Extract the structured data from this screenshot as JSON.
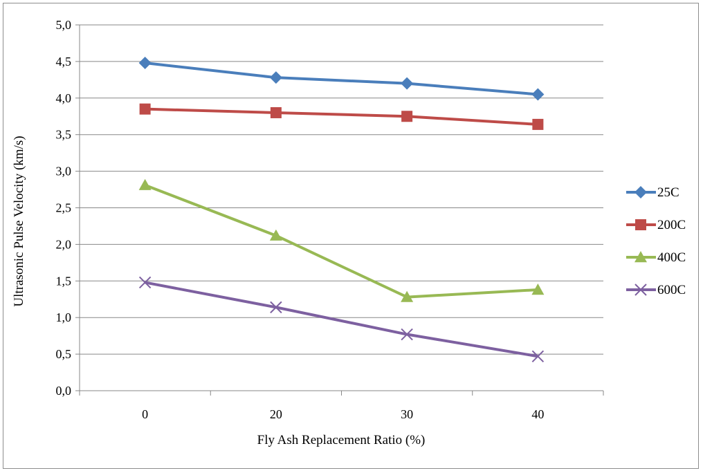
{
  "chart_data": {
    "type": "line",
    "categories": [
      "0",
      "20",
      "30",
      "40"
    ],
    "xlabel": "Fly Ash Replacement Ratio (%)",
    "ylabel": "Ultrasonic Pulse Velocity (km/s)",
    "ylim": [
      0,
      5
    ],
    "y_ticks": [
      "0,0",
      "0,5",
      "1,0",
      "1,5",
      "2,0",
      "2,5",
      "3,0",
      "3,5",
      "4,0",
      "4,5",
      "5,0"
    ],
    "grid": "horizontal",
    "legend_position": "right",
    "series": [
      {
        "name": "25C",
        "values": [
          4.48,
          4.28,
          4.2,
          4.05
        ],
        "color": "#4a7ebb",
        "marker": "diamond"
      },
      {
        "name": "200C",
        "values": [
          3.85,
          3.8,
          3.75,
          3.64
        ],
        "color": "#be4b48",
        "marker": "square"
      },
      {
        "name": "400C",
        "values": [
          2.81,
          2.12,
          1.28,
          1.38
        ],
        "color": "#98b954",
        "marker": "triangle"
      },
      {
        "name": "600C",
        "values": [
          1.48,
          1.14,
          0.77,
          0.47
        ],
        "color": "#7d60a0",
        "marker": "x"
      }
    ]
  }
}
